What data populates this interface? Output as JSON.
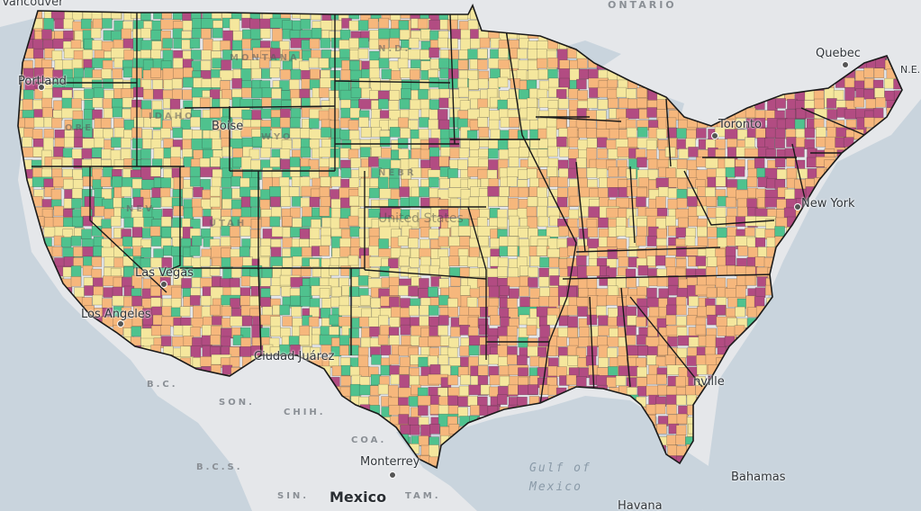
{
  "map": {
    "colors": {
      "land_background": "#e5e7ea",
      "water": "#c9d4dd",
      "state_border": "#1a1a1a",
      "county_border": "rgba(40,40,40,0.35)",
      "classes": [
        "#4fc28e",
        "#f5e79d",
        "#f6b77c",
        "#b24c82"
      ]
    },
    "labels": {
      "vancouver": "Vancouver",
      "ontario": "ONTARIO",
      "quebec": "Quebec",
      "toronto": "Toronto",
      "new_york": "New York",
      "montana": "MONTANA",
      "idaho": "IDAHO",
      "oregon": "ORE",
      "wyoming": "WYO",
      "nevada": "NEV",
      "utah": "UTAH",
      "nebraska": "NEBR",
      "north_dakota": "N.D.",
      "united_states": "United States",
      "las_vegas": "Las Vegas",
      "los_angeles": "Los Angeles",
      "ciudad_juarez": "Ciudad Juárez",
      "jacksonville": "nville",
      "bc": "B.C.",
      "son": "SON.",
      "chih": "CHIH.",
      "coa": "COA.",
      "bcs": "B.C.S.",
      "sin": "SIN.",
      "tam": "TAM.",
      "monterrey": "Monterrey",
      "mexico": "Mexico",
      "gulf_1": "Gulf of",
      "gulf_2": "Mexico",
      "bahamas": "Bahamas",
      "havana": "Havana",
      "ne": "N.E.",
      "portland": "Portland",
      "boise": "Boise"
    }
  }
}
